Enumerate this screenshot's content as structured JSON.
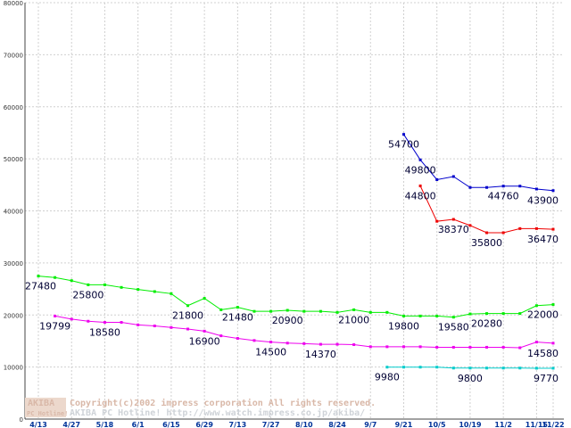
{
  "chart_data": {
    "type": "line",
    "ylim": [
      0,
      80000
    ],
    "y_ticks": [
      0,
      10000,
      20000,
      30000,
      40000,
      50000,
      60000,
      70000,
      80000
    ],
    "categories": [
      "4/13",
      "4/20",
      "4/27",
      "5/4",
      "5/18",
      "5/25",
      "6/1",
      "6/8",
      "6/15",
      "6/22",
      "6/29",
      "7/6",
      "7/13",
      "7/20",
      "7/27",
      "8/3",
      "8/10",
      "8/17",
      "8/24",
      "8/31",
      "9/7",
      "9/14",
      "9/21",
      "9/28",
      "10/5",
      "10/12",
      "10/19",
      "10/26",
      "11/2",
      "11/9",
      "11/15",
      "11/22"
    ],
    "x_tick_labels": [
      "4/13",
      "4/27",
      "5/18",
      "6/1",
      "6/15",
      "6/29",
      "7/13",
      "7/27",
      "8/10",
      "8/24",
      "9/7",
      "9/21",
      "10/5",
      "10/19",
      "11/2",
      "11/15",
      "11/22"
    ],
    "x_tick_positions": [
      "4/13",
      "4/27",
      "5/18",
      "6/1",
      "6/15",
      "6/29",
      "7/13",
      "7/27",
      "8/10",
      "8/24",
      "9/7",
      "9/21",
      "10/5",
      "10/19",
      "11/2",
      "11/15",
      "11/22"
    ],
    "grid": true,
    "series": [
      {
        "color": "#00ee00",
        "values": [
          27480,
          27200,
          26600,
          25800,
          25800,
          25300,
          24900,
          24500,
          24100,
          21800,
          23200,
          21000,
          21480,
          20700,
          20700,
          20900,
          20700,
          20700,
          20500,
          21000,
          20500,
          20500,
          19800,
          19800,
          19800,
          19580,
          20200,
          20280,
          20280,
          20280,
          21800,
          22000
        ],
        "labels": [
          {
            "x": "4/13",
            "text": "27480"
          },
          {
            "x": "5/4",
            "text": "25800"
          },
          {
            "x": "6/22",
            "text": "21800"
          },
          {
            "x": "7/13",
            "text": "21480"
          },
          {
            "x": "8/3",
            "text": "20900"
          },
          {
            "x": "8/31",
            "text": "21000"
          },
          {
            "x": "9/21",
            "text": "19800"
          },
          {
            "x": "10/12",
            "text": "19580"
          },
          {
            "x": "10/26",
            "text": "20280"
          },
          {
            "x": "11/22",
            "text": "22000"
          }
        ]
      },
      {
        "color": "#ee00ee",
        "values": [
          null,
          19799,
          19200,
          18800,
          18580,
          18580,
          18100,
          17900,
          17600,
          17300,
          16900,
          16000,
          15500,
          15100,
          14800,
          14600,
          14500,
          14370,
          14370,
          14300,
          13900,
          13900,
          13900,
          13900,
          13800,
          13800,
          13800,
          13800,
          13800,
          13700,
          14800,
          14580
        ],
        "labels": [
          {
            "x": "4/20",
            "text": "19799"
          },
          {
            "x": "5/18",
            "text": "18580"
          },
          {
            "x": "6/29",
            "text": "16900"
          },
          {
            "x": "7/27",
            "text": "14500"
          },
          {
            "x": "8/17",
            "text": "14370"
          },
          {
            "x": "11/22",
            "text": "14580"
          }
        ]
      },
      {
        "color": "#00cccc",
        "values": [
          null,
          null,
          null,
          null,
          null,
          null,
          null,
          null,
          null,
          null,
          null,
          null,
          null,
          null,
          null,
          null,
          null,
          null,
          null,
          null,
          null,
          9980,
          9980,
          9980,
          9980,
          9800,
          9800,
          9800,
          9800,
          9800,
          9770,
          9770
        ],
        "labels": [
          {
            "x": "9/14",
            "text": "9980"
          },
          {
            "x": "10/19",
            "text": "9800"
          },
          {
            "x": "11/22",
            "text": "9770"
          }
        ]
      },
      {
        "color": "#0000cc",
        "values": [
          null,
          null,
          null,
          null,
          null,
          null,
          null,
          null,
          null,
          null,
          null,
          null,
          null,
          null,
          null,
          null,
          null,
          null,
          null,
          null,
          null,
          null,
          54700,
          49800,
          46000,
          46600,
          44500,
          44500,
          44760,
          44760,
          44200,
          43900
        ],
        "labels": [
          {
            "x": "9/21",
            "text": "54700"
          },
          {
            "x": "9/28",
            "text": "49800"
          },
          {
            "x": "11/2",
            "text": "44760"
          },
          {
            "x": "11/22",
            "text": "43900"
          }
        ]
      },
      {
        "color": "#ee0000",
        "values": [
          null,
          null,
          null,
          null,
          null,
          null,
          null,
          null,
          null,
          null,
          null,
          null,
          null,
          null,
          null,
          null,
          null,
          null,
          null,
          null,
          null,
          null,
          null,
          44800,
          38000,
          38370,
          37200,
          35800,
          35800,
          36600,
          36600,
          36470
        ],
        "labels": [
          {
            "x": "9/28",
            "text": "44800"
          },
          {
            "x": "10/12",
            "text": "38370"
          },
          {
            "x": "10/26",
            "text": "35800"
          },
          {
            "x": "11/22",
            "text": "36470"
          }
        ]
      }
    ]
  },
  "watermark": {
    "logo_text": "AKIBA",
    "logo_sub": "PC Hotline!",
    "line1": "Copyright(c)2002 impress corporation All rights reserved.",
    "line2": "AKIBA PC Hotline!  http://www.watch.impress.co.jp/akiba/"
  }
}
